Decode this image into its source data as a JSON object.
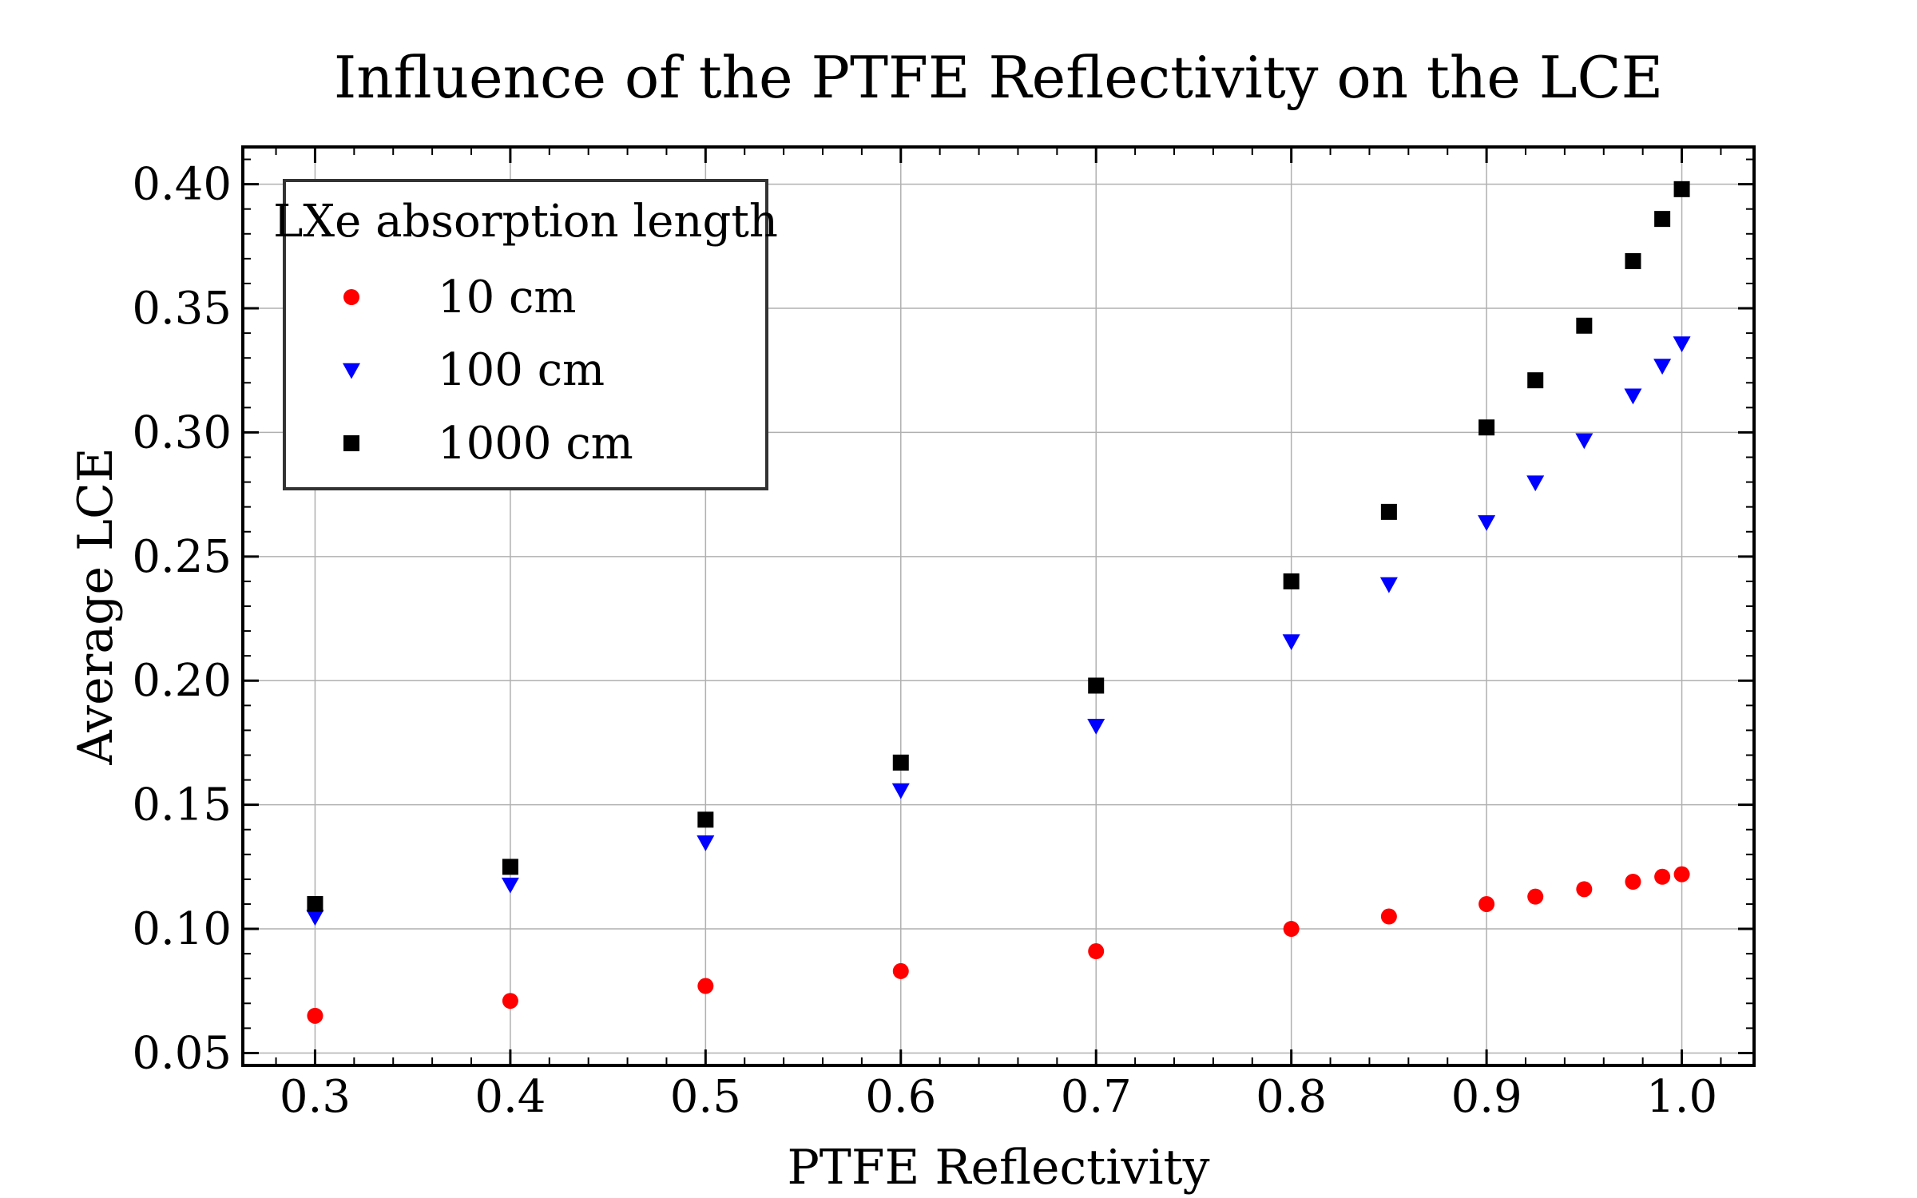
{
  "chart_data": {
    "type": "scatter",
    "title": "Influence of the PTFE Reflectivity on the LCE",
    "xlabel": "PTFE Reflectivity",
    "ylabel": "Average LCE",
    "xlim": [
      0.263,
      1.037
    ],
    "ylim": [
      0.045,
      0.415
    ],
    "xticks": [
      0.3,
      0.4,
      0.5,
      0.6,
      0.7,
      0.8,
      0.9,
      1.0
    ],
    "xtick_labels": [
      "0.3",
      "0.4",
      "0.5",
      "0.6",
      "0.7",
      "0.8",
      "0.9",
      "1.0"
    ],
    "yticks": [
      0.05,
      0.1,
      0.15,
      0.2,
      0.25,
      0.3,
      0.35,
      0.4
    ],
    "ytick_labels": [
      "0.05",
      "0.10",
      "0.15",
      "0.20",
      "0.25",
      "0.30",
      "0.35",
      "0.40"
    ],
    "grid": true,
    "legend": {
      "title": "LXe absorption length",
      "placement": "top-left"
    },
    "x": [
      0.3,
      0.4,
      0.5,
      0.6,
      0.7,
      0.8,
      0.85,
      0.9,
      0.925,
      0.95,
      0.975,
      0.99,
      1.0
    ],
    "series": [
      {
        "name": "10 cm",
        "marker": "circle",
        "color": "#ff0000",
        "values": [
          0.065,
          0.071,
          0.077,
          0.083,
          0.091,
          0.1,
          0.105,
          0.11,
          0.113,
          0.116,
          0.119,
          0.121,
          0.122
        ]
      },
      {
        "name": "100 cm",
        "marker": "triangle-down",
        "color": "#0000ff",
        "values": [
          0.105,
          0.118,
          0.135,
          0.156,
          0.182,
          0.216,
          0.239,
          0.264,
          0.28,
          0.297,
          0.315,
          0.327,
          0.336
        ]
      },
      {
        "name": "1000 cm",
        "marker": "square",
        "color": "#000000",
        "values": [
          0.11,
          0.125,
          0.144,
          0.167,
          0.198,
          0.24,
          0.268,
          0.302,
          0.321,
          0.343,
          0.369,
          0.386,
          0.398
        ]
      }
    ]
  }
}
